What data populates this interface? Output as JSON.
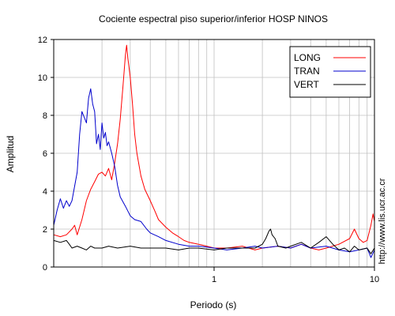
{
  "chart_data": {
    "type": "line",
    "title": "Cociente espectral piso superior/inferior  HOSP NINOS",
    "xlabel": "Periodo (s)",
    "ylabel": "Amplitud",
    "x_scale": "log",
    "xlim": [
      0.1,
      10
    ],
    "ylim": [
      0,
      12
    ],
    "grid": true,
    "legend_position": "top-right",
    "x_ticks": [
      {
        "value": 1,
        "label": "1"
      },
      {
        "value": 10,
        "label": "10"
      }
    ],
    "y_ticks": [
      0,
      2,
      4,
      6,
      8,
      10,
      12
    ],
    "side_text": "http://www.lis.ucr.ac.cr",
    "series": [
      {
        "name": "LONG",
        "color": "#ff0000",
        "points": [
          [
            0.1,
            1.7
          ],
          [
            0.11,
            1.6
          ],
          [
            0.12,
            1.7
          ],
          [
            0.13,
            2.0
          ],
          [
            0.135,
            2.2
          ],
          [
            0.14,
            1.7
          ],
          [
            0.15,
            2.5
          ],
          [
            0.16,
            3.5
          ],
          [
            0.17,
            4.1
          ],
          [
            0.18,
            4.5
          ],
          [
            0.19,
            4.9
          ],
          [
            0.2,
            5.0
          ],
          [
            0.21,
            4.8
          ],
          [
            0.22,
            5.2
          ],
          [
            0.23,
            4.6
          ],
          [
            0.24,
            5.5
          ],
          [
            0.25,
            6.5
          ],
          [
            0.26,
            7.8
          ],
          [
            0.27,
            9.5
          ],
          [
            0.28,
            11.2
          ],
          [
            0.285,
            11.7
          ],
          [
            0.29,
            11.0
          ],
          [
            0.3,
            10.0
          ],
          [
            0.31,
            8.6
          ],
          [
            0.32,
            7.0
          ],
          [
            0.33,
            6.0
          ],
          [
            0.35,
            4.8
          ],
          [
            0.37,
            4.1
          ],
          [
            0.4,
            3.5
          ],
          [
            0.43,
            2.9
          ],
          [
            0.45,
            2.5
          ],
          [
            0.5,
            2.1
          ],
          [
            0.55,
            1.8
          ],
          [
            0.6,
            1.6
          ],
          [
            0.65,
            1.4
          ],
          [
            0.7,
            1.3
          ],
          [
            0.8,
            1.2
          ],
          [
            0.9,
            1.1
          ],
          [
            1.0,
            1.0
          ],
          [
            1.2,
            1.0
          ],
          [
            1.5,
            1.1
          ],
          [
            1.8,
            0.9
          ],
          [
            2.0,
            1.0
          ],
          [
            2.5,
            1.1
          ],
          [
            3.0,
            1.0
          ],
          [
            3.5,
            1.2
          ],
          [
            4.0,
            1.0
          ],
          [
            4.5,
            0.9
          ],
          [
            5.0,
            1.0
          ],
          [
            6.0,
            1.2
          ],
          [
            7.0,
            1.5
          ],
          [
            7.5,
            2.0
          ],
          [
            8.0,
            1.5
          ],
          [
            8.5,
            1.3
          ],
          [
            9.0,
            1.4
          ],
          [
            9.5,
            2.2
          ],
          [
            9.8,
            2.8
          ],
          [
            10.0,
            2.4
          ]
        ]
      },
      {
        "name": "TRAN",
        "color": "#0000cc",
        "points": [
          [
            0.1,
            2.2
          ],
          [
            0.105,
            3.0
          ],
          [
            0.11,
            3.6
          ],
          [
            0.115,
            3.1
          ],
          [
            0.12,
            3.5
          ],
          [
            0.125,
            3.2
          ],
          [
            0.13,
            3.5
          ],
          [
            0.14,
            5.0
          ],
          [
            0.145,
            7.0
          ],
          [
            0.15,
            8.2
          ],
          [
            0.155,
            7.9
          ],
          [
            0.16,
            7.6
          ],
          [
            0.165,
            8.9
          ],
          [
            0.17,
            9.4
          ],
          [
            0.175,
            8.6
          ],
          [
            0.18,
            8.2
          ],
          [
            0.185,
            6.5
          ],
          [
            0.19,
            7.0
          ],
          [
            0.195,
            6.2
          ],
          [
            0.2,
            7.6
          ],
          [
            0.205,
            6.8
          ],
          [
            0.21,
            7.1
          ],
          [
            0.215,
            6.4
          ],
          [
            0.22,
            6.6
          ],
          [
            0.23,
            6.0
          ],
          [
            0.24,
            5.3
          ],
          [
            0.25,
            4.3
          ],
          [
            0.26,
            3.7
          ],
          [
            0.28,
            3.2
          ],
          [
            0.3,
            2.7
          ],
          [
            0.32,
            2.5
          ],
          [
            0.35,
            2.4
          ],
          [
            0.38,
            2.0
          ],
          [
            0.4,
            1.8
          ],
          [
            0.45,
            1.6
          ],
          [
            0.5,
            1.4
          ],
          [
            0.6,
            1.2
          ],
          [
            0.7,
            1.1
          ],
          [
            0.8,
            1.1
          ],
          [
            1.0,
            1.0
          ],
          [
            1.2,
            0.9
          ],
          [
            1.5,
            1.0
          ],
          [
            1.8,
            1.1
          ],
          [
            2.0,
            1.0
          ],
          [
            2.5,
            1.1
          ],
          [
            3.0,
            1.0
          ],
          [
            3.5,
            1.2
          ],
          [
            4.0,
            1.0
          ],
          [
            5.0,
            1.1
          ],
          [
            6.0,
            0.9
          ],
          [
            7.0,
            0.8
          ],
          [
            8.0,
            0.9
          ],
          [
            9.0,
            1.0
          ],
          [
            9.5,
            0.5
          ],
          [
            10.0,
            0.9
          ]
        ]
      },
      {
        "name": "VERT",
        "color": "#000000",
        "points": [
          [
            0.1,
            1.4
          ],
          [
            0.11,
            1.3
          ],
          [
            0.12,
            1.4
          ],
          [
            0.125,
            1.2
          ],
          [
            0.13,
            1.0
          ],
          [
            0.14,
            1.1
          ],
          [
            0.15,
            1.0
          ],
          [
            0.16,
            0.9
          ],
          [
            0.17,
            1.1
          ],
          [
            0.18,
            1.0
          ],
          [
            0.2,
            1.0
          ],
          [
            0.22,
            1.1
          ],
          [
            0.25,
            1.0
          ],
          [
            0.3,
            1.1
          ],
          [
            0.35,
            1.0
          ],
          [
            0.4,
            1.0
          ],
          [
            0.5,
            1.0
          ],
          [
            0.6,
            0.9
          ],
          [
            0.7,
            1.0
          ],
          [
            0.8,
            1.0
          ],
          [
            1.0,
            0.9
          ],
          [
            1.2,
            1.0
          ],
          [
            1.5,
            1.0
          ],
          [
            1.8,
            1.0
          ],
          [
            2.0,
            1.2
          ],
          [
            2.1,
            1.5
          ],
          [
            2.2,
            1.9
          ],
          [
            2.25,
            2.0
          ],
          [
            2.3,
            1.7
          ],
          [
            2.4,
            1.5
          ],
          [
            2.5,
            1.1
          ],
          [
            2.8,
            1.0
          ],
          [
            3.0,
            1.1
          ],
          [
            3.5,
            1.3
          ],
          [
            4.0,
            1.0
          ],
          [
            4.5,
            1.3
          ],
          [
            5.0,
            1.6
          ],
          [
            5.5,
            1.2
          ],
          [
            6.0,
            0.9
          ],
          [
            6.5,
            1.0
          ],
          [
            7.0,
            0.8
          ],
          [
            7.5,
            1.1
          ],
          [
            8.0,
            0.9
          ],
          [
            9.0,
            1.0
          ],
          [
            9.5,
            0.7
          ],
          [
            10.0,
            1.0
          ]
        ]
      }
    ]
  }
}
